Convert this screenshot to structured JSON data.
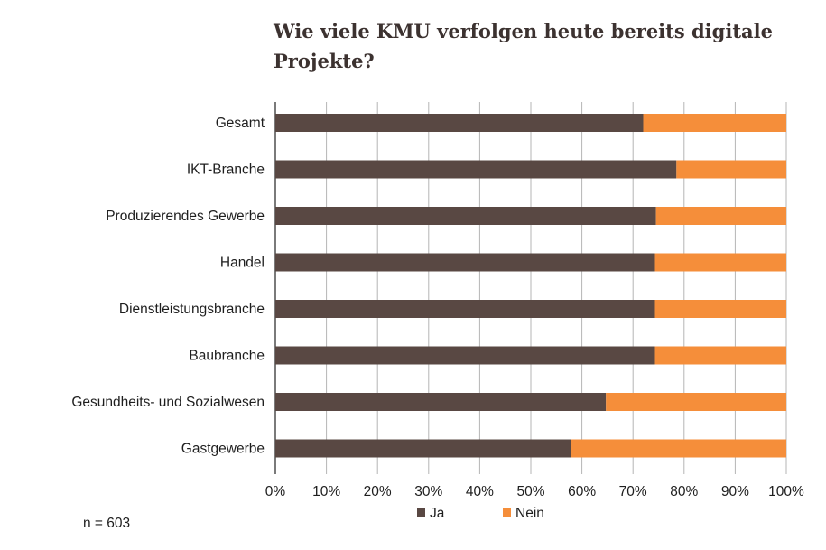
{
  "chart_data": {
    "type": "bar",
    "orientation": "horizontal",
    "stacked": true,
    "title": "Wie viele KMU verfolgen heute bereits digitale Projekte?",
    "categories": [
      "Gesamt",
      "IKT-Branche",
      "Produzierendes Gewerbe",
      "Handel",
      "Dienstleistungsbranche",
      "Baubranche",
      "Gesundheits- und Sozialwesen",
      "Gastgewerbe"
    ],
    "series": [
      {
        "name": "Ja",
        "color": "#594843",
        "values": [
          72,
          78.5,
          74.5,
          74.3,
          74.3,
          74.3,
          64.7,
          57.8
        ]
      },
      {
        "name": "Nein",
        "color": "#f58e3a",
        "values": [
          28,
          21.5,
          25.5,
          25.7,
          25.7,
          25.7,
          35.3,
          42.2
        ]
      }
    ],
    "xlim": [
      0,
      100
    ],
    "xticks": [
      "0%",
      "10%",
      "20%",
      "30%",
      "40%",
      "50%",
      "60%",
      "70%",
      "80%",
      "90%",
      "100%"
    ],
    "grid": "vertical",
    "legend_position": "bottom"
  },
  "note": "n = 603"
}
